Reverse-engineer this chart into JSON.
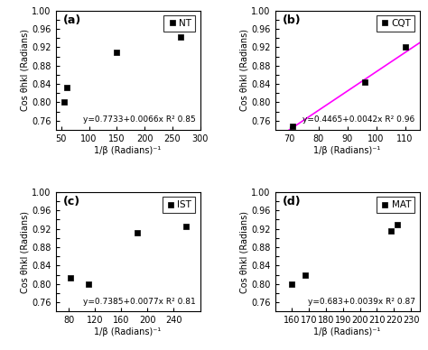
{
  "panels": [
    {
      "label": "(a)",
      "legend": "NT",
      "x_data": [
        55,
        60,
        150,
        265
      ],
      "y_data": [
        0.801,
        0.832,
        0.908,
        0.942
      ],
      "equation": "y=0.7733+0.0066x R² 0.85",
      "slope": 0.0066,
      "intercept": 0.7733,
      "xlim": [
        40,
        300
      ],
      "xticks": [
        50,
        100,
        150,
        200,
        250,
        300
      ],
      "ylim": [
        0.74,
        1.0
      ],
      "yticks": [
        0.76,
        0.78,
        0.8,
        0.82,
        0.84,
        0.86,
        0.88,
        0.9,
        0.92,
        0.94,
        0.96,
        0.98,
        1.0
      ]
    },
    {
      "label": "(b)",
      "legend": "CQT",
      "x_data": [
        71,
        96,
        110
      ],
      "y_data": [
        0.748,
        0.844,
        0.921
      ],
      "equation": "y=0.4465+0.0042x R² 0.96",
      "slope": 0.0042,
      "intercept": 0.4465,
      "xlim": [
        65,
        115
      ],
      "xticks": [
        70,
        80,
        90,
        100,
        110
      ],
      "ylim": [
        0.74,
        1.0
      ],
      "yticks": [
        0.76,
        0.78,
        0.8,
        0.82,
        0.84,
        0.86,
        0.88,
        0.9,
        0.92,
        0.94,
        0.96,
        0.98,
        1.0
      ]
    },
    {
      "label": "(c)",
      "legend": "IST",
      "x_data": [
        82,
        110,
        185,
        258
      ],
      "y_data": [
        0.814,
        0.8,
        0.912,
        0.925
      ],
      "equation": "y=0.7385+0.0077x R² 0.81",
      "slope": 0.0077,
      "intercept": 0.7385,
      "xlim": [
        60,
        280
      ],
      "xticks": [
        80,
        120,
        160,
        200,
        240
      ],
      "ylim": [
        0.74,
        1.0
      ],
      "yticks": [
        0.76,
        0.78,
        0.8,
        0.82,
        0.84,
        0.86,
        0.88,
        0.9,
        0.92,
        0.94,
        0.96,
        0.98,
        1.0
      ]
    },
    {
      "label": "(d)",
      "legend": "MAT",
      "x_data": [
        160,
        168,
        218,
        222
      ],
      "y_data": [
        0.8,
        0.82,
        0.915,
        0.93
      ],
      "equation": "y=0.683+0.0039x R² 0.87",
      "slope": 0.0039,
      "intercept": 0.683,
      "xlim": [
        150,
        235
      ],
      "xticks": [
        160,
        170,
        180,
        190,
        200,
        210,
        220,
        230
      ],
      "ylim": [
        0.74,
        1.0
      ],
      "yticks": [
        0.76,
        0.78,
        0.8,
        0.82,
        0.84,
        0.86,
        0.88,
        0.9,
        0.92,
        0.94,
        0.96,
        0.98,
        1.0
      ]
    }
  ],
  "line_color": "#FF00FF",
  "marker_color": "black",
  "marker": "s",
  "marker_size": 5,
  "xlabel": "1/β (Radians)⁻¹",
  "ylabel": "Cos θhkl (Radians)",
  "bg_color": "#ffffff",
  "eq_fontsize": 6.5,
  "label_fontsize": 9,
  "tick_fontsize": 7,
  "legend_fontsize": 7.5
}
